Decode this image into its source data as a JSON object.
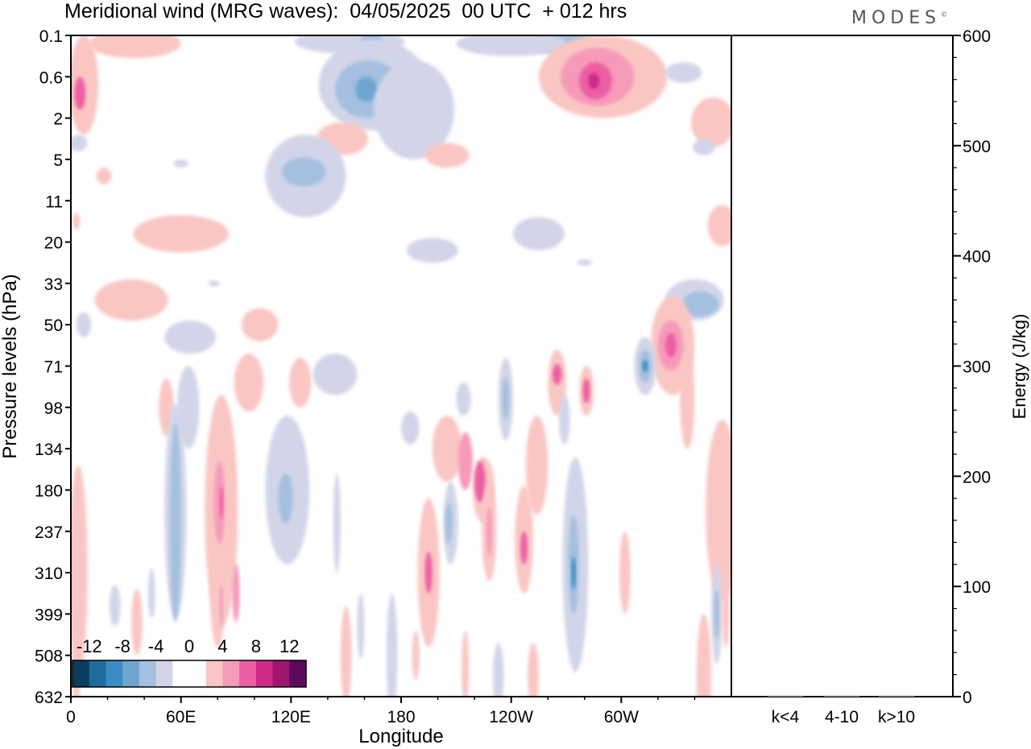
{
  "header": {
    "title": "Meridional wind (MRG waves):  04/05/2025  00 UTC  + 012 hrs",
    "brand": "MODES",
    "brand_mark": "©"
  },
  "chart_data": {
    "type": "heatmap",
    "title": "Meridional wind (MRG waves):  04/05/2025  00 UTC  + 012 hrs",
    "xlabel": "Longitude",
    "ylabel": "Pressure levels (hPa)",
    "x_ticks": [
      "0",
      "60E",
      "120E",
      "180",
      "120W",
      "60W"
    ],
    "y_levels": [
      "0.1",
      "0.6",
      "2",
      "5",
      "11",
      "20",
      "33",
      "50",
      "71",
      "98",
      "134",
      "180",
      "237",
      "310",
      "399",
      "508",
      "632"
    ],
    "colorbar": {
      "tick_labels": [
        "-12",
        "-8",
        "-4",
        "0",
        "4",
        "8",
        "12"
      ],
      "colors": [
        "#0b3d5c",
        "#1e6b9c",
        "#3a8dc4",
        "#6ea6d0",
        "#a4bfdf",
        "#d2d5e8",
        "#ffffff",
        "#ffffff",
        "#f9c6c3",
        "#f59ab9",
        "#ec5fa3",
        "#cf2a88",
        "#9e1670",
        "#5e0a5c"
      ]
    },
    "energy_panel": {
      "ylabel": "Energy (J/kg)",
      "y_ticks": [
        "0",
        "100",
        "200",
        "300",
        "400",
        "500",
        "600"
      ],
      "ylim": [
        0,
        600
      ],
      "categories": [
        "k<4",
        "4-10",
        "k>10"
      ],
      "values": [
        1,
        1,
        1
      ]
    },
    "contours": {
      "colors": {
        "neg_light": "#d2d5e8",
        "neg_mid": "#a4bfdf",
        "neg_strong": "#6ea6d0",
        "neg_deep": "#3a8dc4",
        "pos_light": "#f9c6c3",
        "pos_mid": "#f59ab9",
        "pos_strong": "#ec5fa3",
        "pos_deep": "#cf2a88"
      },
      "blobs": [
        {
          "lon": 7,
          "lev": 1.2,
          "w": 8,
          "h": 1.2,
          "c": "pos_light"
        },
        {
          "lon": 5,
          "lev": 1.4,
          "w": 3,
          "h": 0.4,
          "c": "pos_strong"
        },
        {
          "lon": 35,
          "lev": 0.2,
          "w": 25,
          "h": 0.35,
          "c": "pos_light"
        },
        {
          "lon": 152,
          "lev": 0.15,
          "w": 30,
          "h": 0.3,
          "c": "neg_light"
        },
        {
          "lon": 164,
          "lev": 0.15,
          "w": 6,
          "h": 0.2,
          "c": "neg_mid"
        },
        {
          "lon": 264,
          "lev": 0.18,
          "w": 24,
          "h": 0.25,
          "c": "neg_mid"
        },
        {
          "lon": 240,
          "lev": 0.2,
          "w": 30,
          "h": 0.3,
          "c": "neg_light"
        },
        {
          "lon": 165,
          "lev": 1.2,
          "w": 30,
          "h": 1.1,
          "c": "neg_light"
        },
        {
          "lon": 162,
          "lev": 1.3,
          "w": 18,
          "h": 0.7,
          "c": "neg_mid"
        },
        {
          "lon": 161,
          "lev": 1.3,
          "w": 6,
          "h": 0.3,
          "c": "neg_strong"
        },
        {
          "lon": 187,
          "lev": 1.8,
          "w": 22,
          "h": 1.2,
          "c": "neg_light"
        },
        {
          "lon": 290,
          "lev": 1.0,
          "w": 35,
          "h": 1.0,
          "c": "pos_light"
        },
        {
          "lon": 287,
          "lev": 1.0,
          "w": 20,
          "h": 0.7,
          "c": "pos_mid"
        },
        {
          "lon": 286,
          "lev": 1.1,
          "w": 9,
          "h": 0.45,
          "c": "pos_strong"
        },
        {
          "lon": 285,
          "lev": 1.1,
          "w": 3,
          "h": 0.2,
          "c": "pos_deep"
        },
        {
          "lon": 350,
          "lev": 2.1,
          "w": 12,
          "h": 0.6,
          "c": "pos_light"
        },
        {
          "lon": 334,
          "lev": 0.9,
          "w": 10,
          "h": 0.25,
          "c": "neg_light"
        },
        {
          "lon": 148,
          "lev": 2.5,
          "w": 14,
          "h": 0.4,
          "c": "pos_light"
        },
        {
          "lon": 205,
          "lev": 2.9,
          "w": 12,
          "h": 0.3,
          "c": "pos_light"
        },
        {
          "lon": 60,
          "lev": 3.1,
          "w": 4,
          "h": 0.1,
          "c": "neg_light"
        },
        {
          "lon": 4,
          "lev": 2.6,
          "w": 5,
          "h": 0.2,
          "c": "neg_light"
        },
        {
          "lon": 345,
          "lev": 2.7,
          "w": 6,
          "h": 0.2,
          "c": "neg_light"
        },
        {
          "lon": 128,
          "lev": 3.4,
          "w": 22,
          "h": 1.0,
          "c": "neg_light"
        },
        {
          "lon": 127,
          "lev": 3.3,
          "w": 12,
          "h": 0.35,
          "c": "neg_mid"
        },
        {
          "lon": 255,
          "lev": 4.8,
          "w": 14,
          "h": 0.4,
          "c": "neg_light"
        },
        {
          "lon": 355,
          "lev": 4.6,
          "w": 8,
          "h": 0.5,
          "c": "pos_light"
        },
        {
          "lon": 60,
          "lev": 4.8,
          "w": 26,
          "h": 0.45,
          "c": "pos_light"
        },
        {
          "lon": 18,
          "lev": 3.4,
          "w": 4,
          "h": 0.2,
          "c": "pos_light"
        },
        {
          "lon": 3,
          "lev": 4.5,
          "w": 2,
          "h": 0.2,
          "c": "pos_light"
        },
        {
          "lon": 197,
          "lev": 5.2,
          "w": 14,
          "h": 0.3,
          "c": "neg_light"
        },
        {
          "lon": 280,
          "lev": 5.5,
          "w": 4,
          "h": 0.08,
          "c": "neg_light"
        },
        {
          "lon": 33,
          "lev": 6.4,
          "w": 20,
          "h": 0.5,
          "c": "pos_light"
        },
        {
          "lon": 78,
          "lev": 6.0,
          "w": 3,
          "h": 0.08,
          "c": "neg_light"
        },
        {
          "lon": 340,
          "lev": 6.4,
          "w": 16,
          "h": 0.5,
          "c": "neg_light"
        },
        {
          "lon": 343,
          "lev": 6.5,
          "w": 10,
          "h": 0.3,
          "c": "neg_mid"
        },
        {
          "lon": 7,
          "lev": 7.0,
          "w": 4,
          "h": 0.3,
          "c": "neg_light"
        },
        {
          "lon": 103,
          "lev": 7.0,
          "w": 10,
          "h": 0.4,
          "c": "pos_light"
        },
        {
          "lon": 65,
          "lev": 7.3,
          "w": 14,
          "h": 0.4,
          "c": "neg_light"
        },
        {
          "lon": 328,
          "lev": 7.5,
          "w": 12,
          "h": 1.2,
          "c": "pos_light"
        },
        {
          "lon": 327,
          "lev": 7.5,
          "w": 7,
          "h": 0.6,
          "c": "pos_mid"
        },
        {
          "lon": 327,
          "lev": 7.5,
          "w": 3,
          "h": 0.3,
          "c": "pos_strong"
        },
        {
          "lon": 313,
          "lev": 8.0,
          "w": 6,
          "h": 0.7,
          "c": "neg_light"
        },
        {
          "lon": 313,
          "lev": 8.0,
          "w": 3.5,
          "h": 0.4,
          "c": "neg_mid"
        },
        {
          "lon": 313,
          "lev": 8.0,
          "w": 1.5,
          "h": 0.15,
          "c": "neg_deep"
        },
        {
          "lon": 144,
          "lev": 8.2,
          "w": 12,
          "h": 0.5,
          "c": "neg_light"
        },
        {
          "lon": 97,
          "lev": 8.4,
          "w": 8,
          "h": 0.7,
          "c": "pos_light"
        },
        {
          "lon": 125,
          "lev": 8.4,
          "w": 6,
          "h": 0.6,
          "c": "pos_light"
        },
        {
          "lon": 265,
          "lev": 8.4,
          "w": 5,
          "h": 0.8,
          "c": "pos_light"
        },
        {
          "lon": 265,
          "lev": 8.2,
          "w": 2.5,
          "h": 0.25,
          "c": "pos_strong"
        },
        {
          "lon": 281,
          "lev": 8.6,
          "w": 4,
          "h": 0.6,
          "c": "pos_light"
        },
        {
          "lon": 281,
          "lev": 8.6,
          "w": 2,
          "h": 0.3,
          "c": "pos_strong"
        },
        {
          "lon": 237,
          "lev": 8.8,
          "w": 4,
          "h": 1.0,
          "c": "neg_light"
        },
        {
          "lon": 237,
          "lev": 8.8,
          "w": 2,
          "h": 0.5,
          "c": "neg_mid"
        },
        {
          "lon": 336,
          "lev": 8.8,
          "w": 4,
          "h": 1.2,
          "c": "pos_light"
        },
        {
          "lon": 64,
          "lev": 9.0,
          "w": 6,
          "h": 1.0,
          "c": "neg_light"
        },
        {
          "lon": 52,
          "lev": 9.0,
          "w": 4,
          "h": 0.7,
          "c": "pos_light"
        },
        {
          "lon": 214,
          "lev": 8.8,
          "w": 4,
          "h": 0.4,
          "c": "neg_light"
        },
        {
          "lon": 269,
          "lev": 9.3,
          "w": 3,
          "h": 0.6,
          "c": "neg_light"
        },
        {
          "lon": 205,
          "lev": 10.0,
          "w": 8,
          "h": 0.8,
          "c": "pos_light"
        },
        {
          "lon": 215,
          "lev": 10.3,
          "w": 4,
          "h": 0.7,
          "c": "pos_mid"
        },
        {
          "lon": 185,
          "lev": 9.5,
          "w": 5,
          "h": 0.4,
          "c": "neg_light"
        },
        {
          "lon": 254,
          "lev": 10.4,
          "w": 6,
          "h": 1.2,
          "c": "pos_light"
        },
        {
          "lon": 57,
          "lev": 11.5,
          "w": 6,
          "h": 2.6,
          "c": "neg_light"
        },
        {
          "lon": 57,
          "lev": 11.8,
          "w": 3,
          "h": 2.4,
          "c": "neg_mid"
        },
        {
          "lon": 82,
          "lev": 11.5,
          "w": 9,
          "h": 2.8,
          "c": "pos_light"
        },
        {
          "lon": 81,
          "lev": 11.3,
          "w": 3,
          "h": 1.0,
          "c": "pos_mid"
        },
        {
          "lon": 82,
          "lev": 11.3,
          "w": 1,
          "h": 0.4,
          "c": "pos_strong"
        },
        {
          "lon": 118,
          "lev": 11.0,
          "w": 12,
          "h": 1.8,
          "c": "neg_light"
        },
        {
          "lon": 117,
          "lev": 11.2,
          "w": 4,
          "h": 0.6,
          "c": "neg_mid"
        },
        {
          "lon": 225,
          "lev": 11.0,
          "w": 6,
          "h": 0.8,
          "c": "pos_light"
        },
        {
          "lon": 223,
          "lev": 10.8,
          "w": 3,
          "h": 0.5,
          "c": "pos_strong"
        },
        {
          "lon": 207,
          "lev": 11.8,
          "w": 4,
          "h": 1.0,
          "c": "neg_light"
        },
        {
          "lon": 206,
          "lev": 11.8,
          "w": 2,
          "h": 0.5,
          "c": "neg_mid"
        },
        {
          "lon": 228,
          "lev": 12.0,
          "w": 4,
          "h": 1.2,
          "c": "pos_light"
        },
        {
          "lon": 228,
          "lev": 12.0,
          "w": 1.5,
          "h": 0.6,
          "c": "pos_mid"
        },
        {
          "lon": 247,
          "lev": 12.2,
          "w": 5,
          "h": 1.3,
          "c": "pos_light"
        },
        {
          "lon": 247,
          "lev": 12.4,
          "w": 2,
          "h": 0.4,
          "c": "pos_strong"
        },
        {
          "lon": 195,
          "lev": 13.0,
          "w": 6,
          "h": 1.8,
          "c": "pos_light"
        },
        {
          "lon": 195,
          "lev": 13.0,
          "w": 2,
          "h": 0.5,
          "c": "pos_strong"
        },
        {
          "lon": 275,
          "lev": 12.8,
          "w": 7,
          "h": 2.6,
          "c": "neg_light"
        },
        {
          "lon": 274,
          "lev": 12.8,
          "w": 3,
          "h": 1.2,
          "c": "neg_mid"
        },
        {
          "lon": 274,
          "lev": 13.0,
          "w": 1.2,
          "h": 0.4,
          "c": "neg_deep"
        },
        {
          "lon": 302,
          "lev": 13.0,
          "w": 3,
          "h": 1.0,
          "c": "pos_light"
        },
        {
          "lon": 355,
          "lev": 11.5,
          "w": 9,
          "h": 2.2,
          "c": "pos_light"
        },
        {
          "lon": 352,
          "lev": 14.0,
          "w": 3,
          "h": 1.2,
          "c": "neg_light"
        },
        {
          "lon": 352,
          "lev": 14.0,
          "w": 1.5,
          "h": 0.6,
          "c": "neg_mid"
        },
        {
          "lon": 80,
          "lev": 13.6,
          "w": 4,
          "h": 1.2,
          "c": "pos_light"
        },
        {
          "lon": 82,
          "lev": 13.8,
          "w": 1,
          "h": 0.5,
          "c": "pos_mid"
        },
        {
          "lon": 90,
          "lev": 13.5,
          "w": 2,
          "h": 0.7,
          "c": "pos_mid"
        },
        {
          "lon": 4,
          "lev": 13.0,
          "w": 5,
          "h": 2.6,
          "c": "pos_light"
        },
        {
          "lon": 3,
          "lev": 15.5,
          "w": 2,
          "h": 0.8,
          "c": "pos_light"
        },
        {
          "lon": 145,
          "lev": 11.8,
          "w": 2,
          "h": 1.2,
          "c": "neg_light"
        },
        {
          "lon": 150,
          "lev": 15.0,
          "w": 3,
          "h": 1.2,
          "c": "pos_light"
        },
        {
          "lon": 158,
          "lev": 14.3,
          "w": 2,
          "h": 0.8,
          "c": "neg_light"
        },
        {
          "lon": 175,
          "lev": 15.0,
          "w": 3,
          "h": 1.5,
          "c": "neg_light"
        },
        {
          "lon": 188,
          "lev": 15.0,
          "w": 2,
          "h": 0.6,
          "c": "pos_light"
        },
        {
          "lon": 215,
          "lev": 15.3,
          "w": 2,
          "h": 0.9,
          "c": "pos_light"
        },
        {
          "lon": 233,
          "lev": 15.5,
          "w": 3,
          "h": 0.8,
          "c": "neg_light"
        },
        {
          "lon": 252,
          "lev": 15.5,
          "w": 3,
          "h": 0.8,
          "c": "pos_light"
        },
        {
          "lon": 345,
          "lev": 15.5,
          "w": 4,
          "h": 1.5,
          "c": "pos_light"
        },
        {
          "lon": 357,
          "lev": 14.0,
          "w": 2,
          "h": 0.8,
          "c": "pos_light"
        },
        {
          "lon": 24,
          "lev": 13.8,
          "w": 3,
          "h": 0.5,
          "c": "neg_light"
        },
        {
          "lon": 36,
          "lev": 14.2,
          "w": 3,
          "h": 0.8,
          "c": "pos_light"
        },
        {
          "lon": 44,
          "lev": 13.5,
          "w": 2,
          "h": 0.6,
          "c": "neg_light"
        }
      ]
    }
  }
}
